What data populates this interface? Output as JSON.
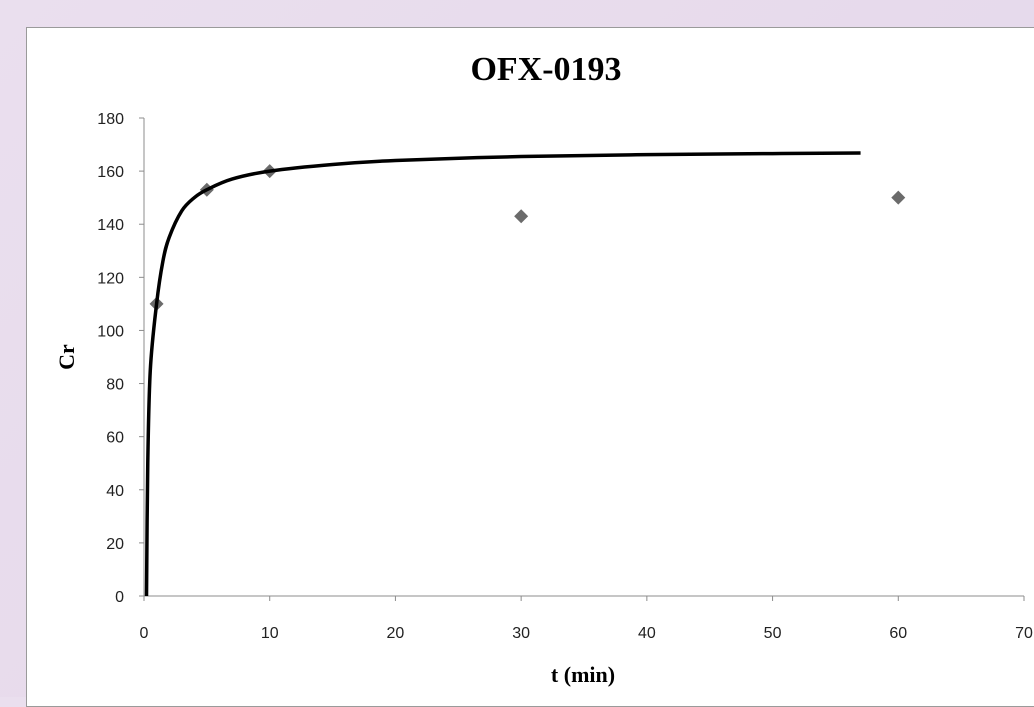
{
  "chart_data": {
    "type": "scatter",
    "title": "OFX-0193",
    "xlabel": "t (min)",
    "ylabel": "Cr",
    "xlim": [
      0,
      70
    ],
    "ylim": [
      0,
      180
    ],
    "xticks": [
      0,
      10,
      20,
      30,
      40,
      50,
      60,
      70
    ],
    "yticks": [
      0,
      20,
      40,
      60,
      80,
      100,
      120,
      140,
      160,
      180
    ],
    "grid": false,
    "legend": "none",
    "series": [
      {
        "type": "scatter",
        "marker": "diamond",
        "color": "#6b6b6b",
        "points": [
          {
            "x": 1,
            "y": 110
          },
          {
            "x": 5,
            "y": 153
          },
          {
            "x": 10,
            "y": 160
          },
          {
            "x": 30,
            "y": 143
          },
          {
            "x": 60,
            "y": 150
          }
        ]
      },
      {
        "type": "line",
        "color": "#000000",
        "points": [
          {
            "x": 0.2,
            "y": 0
          },
          {
            "x": 0.3,
            "y": 50
          },
          {
            "x": 0.5,
            "y": 85
          },
          {
            "x": 1,
            "y": 110
          },
          {
            "x": 1.5,
            "y": 126
          },
          {
            "x": 2,
            "y": 135
          },
          {
            "x": 3,
            "y": 145
          },
          {
            "x": 4,
            "y": 150
          },
          {
            "x": 5,
            "y": 153
          },
          {
            "x": 7,
            "y": 157
          },
          {
            "x": 10,
            "y": 160
          },
          {
            "x": 15,
            "y": 162.5
          },
          {
            "x": 20,
            "y": 164
          },
          {
            "x": 30,
            "y": 165.5
          },
          {
            "x": 40,
            "y": 166.2
          },
          {
            "x": 50,
            "y": 166.6
          },
          {
            "x": 57,
            "y": 166.8
          }
        ]
      }
    ]
  }
}
